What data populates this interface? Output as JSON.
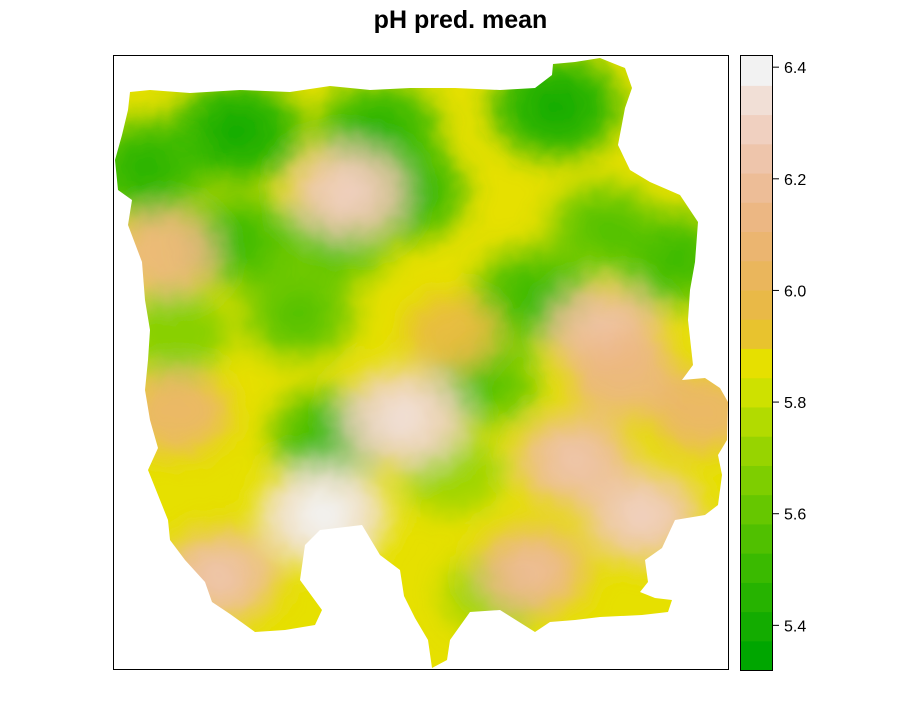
{
  "title": "pH pred. mean",
  "legend": {
    "ticks": [
      {
        "value": 6.4,
        "label": "6.4"
      },
      {
        "value": 6.2,
        "label": "6.2"
      },
      {
        "value": 6.0,
        "label": "6.0"
      },
      {
        "value": 5.8,
        "label": "5.8"
      },
      {
        "value": 5.6,
        "label": "5.6"
      },
      {
        "value": 5.4,
        "label": "5.4"
      }
    ],
    "range": [
      5.32,
      6.42
    ],
    "colors": [
      "#00a600",
      "#13ac00",
      "#26b300",
      "#3aba00",
      "#50c000",
      "#66c700",
      "#7ece00",
      "#97d400",
      "#b2db00",
      "#cee100",
      "#e6e000",
      "#e8c32e",
      "#e9b947",
      "#eab65c",
      "#ebb570",
      "#ecb783",
      "#edbd97",
      "#eec5ab",
      "#f0d0c0",
      "#f1dfd6",
      "#f2f2f2"
    ]
  },
  "chart_data": {
    "type": "heatmap",
    "title": "pH pred. mean",
    "colorbar_ticks": [
      5.4,
      5.6,
      5.8,
      6.0,
      6.2,
      6.4
    ],
    "value_range": [
      5.32,
      6.42
    ],
    "hotspots": [
      {
        "x": 0.2,
        "y": 0.12,
        "value": 5.45
      },
      {
        "x": 0.43,
        "y": 0.12,
        "value": 5.5
      },
      {
        "x": 0.72,
        "y": 0.08,
        "value": 5.45
      },
      {
        "x": 0.05,
        "y": 0.18,
        "value": 5.5
      },
      {
        "x": 0.47,
        "y": 0.22,
        "value": 5.5
      },
      {
        "x": 0.2,
        "y": 0.3,
        "value": 5.55
      },
      {
        "x": 0.36,
        "y": 0.3,
        "value": 5.6
      },
      {
        "x": 0.8,
        "y": 0.28,
        "value": 5.6
      },
      {
        "x": 0.92,
        "y": 0.33,
        "value": 5.55
      },
      {
        "x": 0.68,
        "y": 0.39,
        "value": 5.55
      },
      {
        "x": 0.3,
        "y": 0.42,
        "value": 5.6
      },
      {
        "x": 0.1,
        "y": 0.45,
        "value": 5.65
      },
      {
        "x": 0.6,
        "y": 0.53,
        "value": 5.6
      },
      {
        "x": 0.35,
        "y": 0.62,
        "value": 5.55
      },
      {
        "x": 0.55,
        "y": 0.68,
        "value": 5.7
      },
      {
        "x": 0.62,
        "y": 0.88,
        "value": 5.7
      },
      {
        "x": 0.38,
        "y": 0.22,
        "value": 6.22
      },
      {
        "x": 0.08,
        "y": 0.32,
        "value": 6.12
      },
      {
        "x": 0.8,
        "y": 0.45,
        "value": 6.2
      },
      {
        "x": 0.83,
        "y": 0.52,
        "value": 6.12
      },
      {
        "x": 0.47,
        "y": 0.59,
        "value": 6.28
      },
      {
        "x": 0.1,
        "y": 0.58,
        "value": 6.1
      },
      {
        "x": 0.75,
        "y": 0.66,
        "value": 6.2
      },
      {
        "x": 0.86,
        "y": 0.75,
        "value": 6.22
      },
      {
        "x": 0.34,
        "y": 0.75,
        "value": 6.32
      },
      {
        "x": 0.17,
        "y": 0.85,
        "value": 6.2
      },
      {
        "x": 0.96,
        "y": 0.58,
        "value": 6.08
      },
      {
        "x": 0.68,
        "y": 0.84,
        "value": 6.15
      },
      {
        "x": 0.55,
        "y": 0.45,
        "value": 6.0
      }
    ]
  }
}
